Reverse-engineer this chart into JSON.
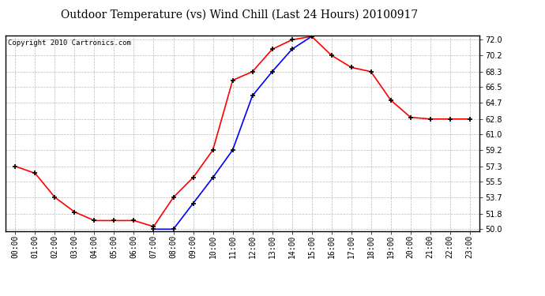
{
  "title": "Outdoor Temperature (vs) Wind Chill (Last 24 Hours) 20100917",
  "copyright": "Copyright 2010 Cartronics.com",
  "x_labels": [
    "00:00",
    "01:00",
    "02:00",
    "03:00",
    "04:00",
    "05:00",
    "06:00",
    "07:00",
    "08:00",
    "09:00",
    "10:00",
    "11:00",
    "12:00",
    "13:00",
    "14:00",
    "15:00",
    "16:00",
    "17:00",
    "18:00",
    "19:00",
    "20:00",
    "21:00",
    "22:00",
    "23:00"
  ],
  "temp_red": [
    57.3,
    56.5,
    53.7,
    52.0,
    51.0,
    51.0,
    51.0,
    50.3,
    53.7,
    56.0,
    59.2,
    67.3,
    68.3,
    70.9,
    72.0,
    72.4,
    70.2,
    68.8,
    68.3,
    65.0,
    63.0,
    62.8,
    62.8,
    62.8
  ],
  "wind_chill_blue": [
    null,
    null,
    null,
    null,
    null,
    null,
    null,
    50.0,
    50.0,
    53.0,
    56.0,
    59.2,
    65.5,
    68.3,
    70.9,
    72.4,
    null,
    null,
    null,
    null,
    null,
    null,
    null,
    null
  ],
  "ylim_min": 49.8,
  "ylim_max": 72.5,
  "yticks": [
    50.0,
    51.8,
    53.7,
    55.5,
    57.3,
    59.2,
    61.0,
    62.8,
    64.7,
    66.5,
    68.3,
    70.2,
    72.0
  ],
  "bg_color": "#ffffff",
  "plot_bg_color": "#ffffff",
  "grid_color": "#aaaaaa",
  "red_color": "#ff0000",
  "blue_color": "#0000ff",
  "title_fontsize": 10,
  "copyright_fontsize": 6.5,
  "tick_fontsize": 7,
  "ytick_fontsize": 7
}
